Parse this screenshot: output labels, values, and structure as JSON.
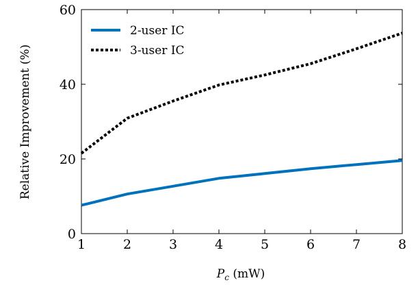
{
  "chart_data": {
    "type": "line",
    "x": [
      1,
      2,
      3,
      4,
      5,
      6,
      7,
      8
    ],
    "series": [
      {
        "name": "2-user IC",
        "color": "#0072BD",
        "line_style": "solid",
        "values": [
          7.6,
          10.6,
          12.7,
          14.8,
          16.1,
          17.4,
          18.5,
          19.6
        ]
      },
      {
        "name": "3-user IC",
        "color": "#000000",
        "line_style": "dotted",
        "values": [
          21.5,
          30.9,
          35.5,
          39.8,
          42.5,
          45.5,
          49.5,
          53.7
        ]
      }
    ],
    "xlabel_var": "P",
    "xlabel_sub": "c",
    "xlabel_unit": " (mW)",
    "ylabel": "Relative Improvement (%)",
    "xlim": [
      1,
      8
    ],
    "ylim": [
      0,
      60
    ],
    "xticks": [
      1,
      2,
      3,
      4,
      5,
      6,
      7,
      8
    ],
    "yticks": [
      0,
      20,
      40,
      60
    ],
    "grid": false,
    "legend_position": "top-left"
  }
}
